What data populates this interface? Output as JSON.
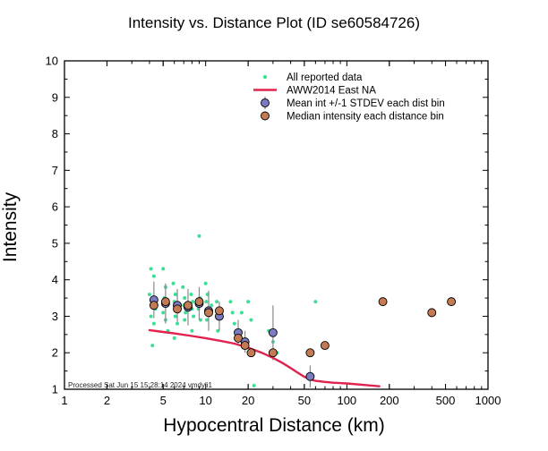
{
  "title": "Intensity vs. Distance Plot (ID se60584726)",
  "xlabel": "Hypocentral Distance (km)",
  "ylabel": "Intensity",
  "footer": "Processed Sat Jun 15 15:28:14 2024 vmdyli1",
  "colors": {
    "all_reported": "#3bdf95",
    "model_line": "#e0234e",
    "mean_fill": "#7b7bc4",
    "median_fill": "#c47a52",
    "marker_stroke": "#000000",
    "error_bar": "#8a8a8a",
    "frame": "#000000"
  },
  "chart_data": {
    "type": "scatter",
    "title": "Intensity vs. Distance Plot (ID se60584726)",
    "xlabel": "Hypocentral Distance (km)",
    "ylabel": "Intensity",
    "xscale": "log",
    "xlim": [
      1,
      1000
    ],
    "ylim": [
      1,
      10
    ],
    "x_major_ticks": [
      1,
      2,
      5,
      10,
      20,
      50,
      100,
      200,
      500,
      1000
    ],
    "y_major_ticks": [
      1,
      2,
      3,
      4,
      5,
      6,
      7,
      8,
      9,
      10
    ],
    "grid": false,
    "legend_position": "upper-center-right",
    "legend": [
      {
        "label": "All reported data",
        "marker": "dot",
        "color": "#3bdf95"
      },
      {
        "label": "AWW2014 East NA",
        "marker": "line",
        "color": "#e0234e"
      },
      {
        "label": "Mean int +/-1 STDEV each dist bin",
        "marker": "circle-errorbar",
        "color": "#7b7bc4"
      },
      {
        "label": "Median intensity each distance bin",
        "marker": "circle",
        "color": "#c47a52"
      }
    ],
    "series": [
      {
        "name": "All reported data",
        "type": "scatter-dots",
        "points": [
          [
            4.1,
            4.3
          ],
          [
            4.3,
            4.1
          ],
          [
            4.0,
            3.6
          ],
          [
            4.2,
            3.4
          ],
          [
            4.4,
            3.2
          ],
          [
            4.1,
            3.0
          ],
          [
            4.3,
            2.8
          ],
          [
            4.2,
            2.2
          ],
          [
            5.0,
            4.3
          ],
          [
            5.2,
            3.8
          ],
          [
            5.1,
            3.5
          ],
          [
            5.3,
            3.3
          ],
          [
            5.0,
            3.1
          ],
          [
            5.2,
            2.9
          ],
          [
            5.4,
            2.6
          ],
          [
            5.9,
            3.9
          ],
          [
            6.1,
            3.6
          ],
          [
            6.0,
            3.4
          ],
          [
            6.2,
            3.2
          ],
          [
            6.1,
            3.0
          ],
          [
            6.3,
            2.8
          ],
          [
            6.0,
            2.4
          ],
          [
            6.9,
            3.8
          ],
          [
            7.1,
            3.5
          ],
          [
            7.0,
            3.3
          ],
          [
            7.2,
            3.1
          ],
          [
            7.1,
            2.9
          ],
          [
            7.9,
            3.6
          ],
          [
            8.1,
            3.4
          ],
          [
            8.0,
            3.2
          ],
          [
            8.2,
            3.0
          ],
          [
            8.0,
            2.6
          ],
          [
            9.0,
            5.2
          ],
          [
            9.1,
            3.5
          ],
          [
            8.9,
            3.2
          ],
          [
            9.2,
            2.9
          ],
          [
            10.0,
            3.9
          ],
          [
            10.3,
            3.6
          ],
          [
            10.1,
            3.4
          ],
          [
            10.5,
            3.1
          ],
          [
            10.2,
            2.9
          ],
          [
            11.0,
            3.3
          ],
          [
            12.0,
            3.4
          ],
          [
            12.5,
            3.2
          ],
          [
            13.0,
            3.0
          ],
          [
            12.2,
            2.6
          ],
          [
            15.0,
            3.4
          ],
          [
            15.5,
            3.1
          ],
          [
            16.0,
            2.8
          ],
          [
            18.0,
            3.1
          ],
          [
            20.0,
            3.4
          ],
          [
            21.0,
            2.9
          ],
          [
            22.0,
            1.1
          ],
          [
            28.0,
            2.6
          ],
          [
            30.0,
            2.3
          ],
          [
            32.0,
            2.0
          ],
          [
            55.0,
            2.0
          ],
          [
            60.0,
            3.4
          ],
          [
            180.0,
            3.4
          ],
          [
            400.0,
            3.1
          ],
          [
            550.0,
            3.4
          ]
        ]
      },
      {
        "name": "AWW2014 East NA",
        "type": "line",
        "points": [
          [
            4,
            2.62
          ],
          [
            5,
            2.57
          ],
          [
            6,
            2.53
          ],
          [
            8,
            2.46
          ],
          [
            10,
            2.4
          ],
          [
            13,
            2.32
          ],
          [
            16,
            2.25
          ],
          [
            20,
            2.14
          ],
          [
            25,
            2.0
          ],
          [
            30,
            1.86
          ],
          [
            35,
            1.72
          ],
          [
            40,
            1.58
          ],
          [
            45,
            1.45
          ],
          [
            50,
            1.34
          ],
          [
            55,
            1.27
          ],
          [
            60,
            1.23
          ],
          [
            70,
            1.2
          ],
          [
            80,
            1.18
          ],
          [
            100,
            1.16
          ],
          [
            130,
            1.12
          ],
          [
            170,
            1.08
          ]
        ]
      },
      {
        "name": "Mean int +/-1 STDEV each dist bin",
        "type": "scatter-errorbar",
        "points": [
          [
            4.3,
            3.45,
            0.5
          ],
          [
            5.2,
            3.35,
            0.55
          ],
          [
            6.3,
            3.3,
            0.45
          ],
          [
            7.5,
            3.25,
            0.5
          ],
          [
            9.0,
            3.35,
            0.45
          ],
          [
            10.5,
            3.15,
            0.55
          ],
          [
            12.5,
            3.0,
            0.4
          ],
          [
            17.0,
            2.55,
            0.35
          ],
          [
            19.0,
            2.3,
            0.3
          ],
          [
            30.0,
            2.55,
            0.75
          ],
          [
            55.0,
            1.35,
            0.3
          ]
        ]
      },
      {
        "name": "Median intensity each distance bin",
        "type": "scatter",
        "points": [
          [
            4.3,
            3.3
          ],
          [
            5.2,
            3.4
          ],
          [
            6.3,
            3.2
          ],
          [
            7.5,
            3.3
          ],
          [
            9.0,
            3.4
          ],
          [
            10.5,
            3.1
          ],
          [
            12.5,
            3.15
          ],
          [
            17.0,
            2.4
          ],
          [
            19.0,
            2.2
          ],
          [
            21.0,
            2.0
          ],
          [
            30.0,
            2.0
          ],
          [
            55.0,
            2.0
          ],
          [
            70.0,
            2.2
          ],
          [
            180.0,
            3.4
          ],
          [
            400.0,
            3.1
          ],
          [
            550.0,
            3.4
          ]
        ]
      }
    ]
  }
}
